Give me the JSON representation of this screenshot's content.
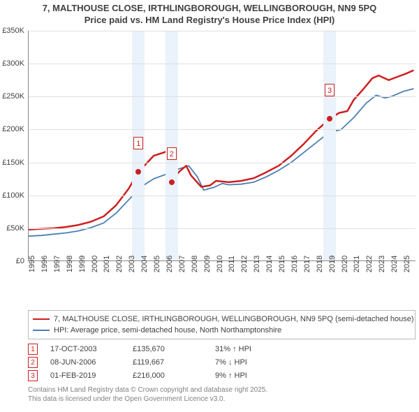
{
  "title_line1": "7, MALTHOUSE CLOSE, IRTHLINGBOROUGH, WELLINGBOROUGH, NN9 5PQ",
  "title_line2": "Price paid vs. HM Land Registry's House Price Index (HPI)",
  "chart": {
    "type": "line",
    "ylim": [
      0,
      350000
    ],
    "ytick_step": 50000,
    "yticks": [
      "£0",
      "£50K",
      "£100K",
      "£150K",
      "£200K",
      "£250K",
      "£300K",
      "£350K"
    ],
    "xstart": 1995,
    "xend": 2026,
    "xticks": [
      1995,
      1996,
      1997,
      1998,
      1999,
      2000,
      2001,
      2002,
      2003,
      2004,
      2005,
      2006,
      2007,
      2008,
      2009,
      2010,
      2011,
      2012,
      2013,
      2014,
      2015,
      2016,
      2017,
      2018,
      2019,
      2020,
      2021,
      2022,
      2023,
      2024,
      2025
    ],
    "background_color": "#ffffff",
    "grid_color": "#e0e0e0",
    "band_color": "#eaf2fb",
    "series": [
      {
        "name": "price_paid",
        "color": "#cf1e1e",
        "width": 2.5,
        "legend": "7, MALTHOUSE CLOSE, IRTHLINGBOROUGH, WELLINGBOROUGH, NN9 5PQ (semi-detached house)",
        "points": [
          [
            1995,
            48000
          ],
          [
            1996,
            49000
          ],
          [
            1997,
            50000
          ],
          [
            1998,
            52000
          ],
          [
            1999,
            55000
          ],
          [
            2000,
            60000
          ],
          [
            2001,
            68000
          ],
          [
            2002,
            85000
          ],
          [
            2003,
            110000
          ],
          [
            2003.79,
            135670
          ],
          [
            2003.79,
            135670
          ],
          [
            2004.5,
            150000
          ],
          [
            2005,
            160000
          ],
          [
            2005.8,
            165000
          ],
          [
            2006.2,
            168000
          ],
          [
            2006.44,
            119667
          ],
          [
            2006.44,
            119667
          ],
          [
            2007,
            135000
          ],
          [
            2007.6,
            145000
          ],
          [
            2008,
            130000
          ],
          [
            2008.8,
            113000
          ],
          [
            2009.5,
            115000
          ],
          [
            2010,
            122000
          ],
          [
            2011,
            120000
          ],
          [
            2012,
            122000
          ],
          [
            2013,
            126000
          ],
          [
            2014,
            135000
          ],
          [
            2015,
            145000
          ],
          [
            2016,
            160000
          ],
          [
            2017,
            178000
          ],
          [
            2018,
            198000
          ],
          [
            2019.08,
            216000
          ],
          [
            2019.08,
            216000
          ],
          [
            2019.8,
            225000
          ],
          [
            2020.5,
            228000
          ],
          [
            2021,
            245000
          ],
          [
            2021.8,
            262000
          ],
          [
            2022.5,
            278000
          ],
          [
            2023,
            282000
          ],
          [
            2023.8,
            275000
          ],
          [
            2024.5,
            280000
          ],
          [
            2025.2,
            285000
          ],
          [
            2025.8,
            290000
          ]
        ]
      },
      {
        "name": "hpi",
        "color": "#4b7fb3",
        "width": 1.8,
        "legend": "HPI: Average price, semi-detached house, North Northamptonshire",
        "points": [
          [
            1995,
            38000
          ],
          [
            1996,
            39000
          ],
          [
            1997,
            41000
          ],
          [
            1998,
            43000
          ],
          [
            1999,
            46000
          ],
          [
            2000,
            51000
          ],
          [
            2001,
            58000
          ],
          [
            2002,
            73000
          ],
          [
            2003,
            93000
          ],
          [
            2004,
            113000
          ],
          [
            2005,
            125000
          ],
          [
            2006,
            132000
          ],
          [
            2007,
            140000
          ],
          [
            2007.8,
            145000
          ],
          [
            2008.5,
            128000
          ],
          [
            2009,
            108000
          ],
          [
            2009.8,
            112000
          ],
          [
            2010.5,
            118000
          ],
          [
            2011,
            116000
          ],
          [
            2012,
            117000
          ],
          [
            2013,
            120000
          ],
          [
            2014,
            128000
          ],
          [
            2015,
            138000
          ],
          [
            2016,
            150000
          ],
          [
            2017,
            165000
          ],
          [
            2018,
            180000
          ],
          [
            2019,
            195000
          ],
          [
            2020,
            200000
          ],
          [
            2021,
            218000
          ],
          [
            2022,
            240000
          ],
          [
            2022.8,
            252000
          ],
          [
            2023.5,
            248000
          ],
          [
            2024,
            250000
          ],
          [
            2025,
            258000
          ],
          [
            2025.8,
            262000
          ]
        ]
      }
    ],
    "markers": [
      {
        "n": "1",
        "color": "#cf1e1e",
        "year": 2003.79,
        "value": 135670
      },
      {
        "n": "2",
        "color": "#cf1e1e",
        "year": 2006.44,
        "value": 119667
      },
      {
        "n": "3",
        "color": "#cf1e1e",
        "year": 2019.08,
        "value": 216000
      }
    ]
  },
  "sales": [
    {
      "n": "1",
      "color": "#cf1e1e",
      "date": "17-OCT-2003",
      "price": "£135,670",
      "delta": "31% ↑ HPI"
    },
    {
      "n": "2",
      "color": "#cf1e1e",
      "date": "08-JUN-2006",
      "price": "£119,667",
      "delta": "7% ↓ HPI"
    },
    {
      "n": "3",
      "color": "#cf1e1e",
      "date": "01-FEB-2019",
      "price": "£216,000",
      "delta": "9% ↑ HPI"
    }
  ],
  "footer": {
    "line1": "Contains HM Land Registry data © Crown copyright and database right 2025.",
    "line2": "This data is licensed under the Open Government Licence v3.0."
  }
}
